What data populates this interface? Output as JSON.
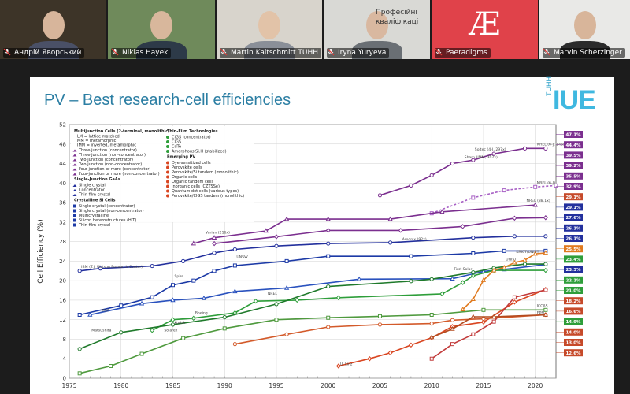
{
  "participants": [
    {
      "name": "Андрій Яворський",
      "bg": "#3d3428",
      "skin": "#d7b59b",
      "shirt": "#4a5066"
    },
    {
      "name": "Niklas Hayek",
      "bg": "#6f8a5b",
      "skin": "#d8b79c",
      "shirt": "#2d3a48"
    },
    {
      "name": "Martin Kaltschmitt TUHH",
      "bg": "#d8d4cc",
      "skin": "#e2c3a8",
      "shirt": "#8a8f98"
    },
    {
      "name": "Iryna Yuryeva",
      "bg": "#d9d9d5",
      "skin": "#d9b8a0",
      "shirt": "#6a6f74",
      "overlay_text": "Професійні\nкваліфікаці"
    },
    {
      "name": "Paeradigms",
      "bg": "#e0424a",
      "logo": "Æ"
    },
    {
      "name": "Marvin Scherzinger",
      "bg": "#e9e9e7",
      "skin": "#d8b59a",
      "shirt": "#2b2b2b"
    }
  ],
  "slide": {
    "title": "PV – Best research-cell efficiencies",
    "logo_small": "TUHH",
    "logo_big": "IUE"
  },
  "chart_data": {
    "type": "line",
    "ylabel": "Cell Efficiency (%)",
    "xlabel": "",
    "xlim": [
      1975,
      2022
    ],
    "ylim": [
      0,
      52
    ],
    "xticks": [
      1975,
      1980,
      1985,
      1990,
      1995,
      2000,
      2005,
      2010,
      2015,
      2020
    ],
    "yticks": [
      0,
      4,
      8,
      12,
      16,
      20,
      24,
      28,
      32,
      36,
      40,
      44,
      48,
      52
    ],
    "grid": true,
    "legend_placement": "top-left",
    "series": [
      {
        "name": "Four-junction or more (concentrator)",
        "color": "#7b2f8f",
        "x": [
          2005,
          2008,
          2010,
          2012,
          2014,
          2016,
          2019,
          2021
        ],
        "y": [
          37.5,
          39.5,
          41.6,
          44.0,
          44.7,
          46.0,
          47.1,
          47.1
        ]
      },
      {
        "name": "Four-junction or more (non-concentrator)",
        "color": "#a75fc4",
        "x": [
          2010,
          2014,
          2017,
          2020,
          2022
        ],
        "y": [
          33.8,
          37.0,
          38.5,
          39.2,
          39.5
        ]
      },
      {
        "name": "Two-junction (concentrator)",
        "color": "#7b2f8f",
        "x": [
          1987,
          1989,
          1994,
          1996,
          2000,
          2006,
          2011,
          2020
        ],
        "y": [
          27.6,
          28.8,
          30.2,
          32.6,
          32.6,
          32.6,
          34.1,
          35.5
        ]
      },
      {
        "name": "Two-junction (non-concentrator)",
        "color": "#7b2f8f",
        "x": [
          1989,
          1995,
          2000,
          2007,
          2013,
          2018,
          2021
        ],
        "y": [
          27.6,
          29.0,
          30.3,
          30.3,
          31.1,
          32.8,
          32.9
        ]
      },
      {
        "name": "Single crystal",
        "color": "#23309d",
        "x": [
          1976,
          1978,
          1983,
          1986,
          1989,
          1991,
          1995,
          2000,
          2006,
          2014,
          2018,
          2021
        ],
        "y": [
          22.0,
          22.5,
          23.0,
          24.0,
          25.7,
          26.4,
          27.1,
          27.6,
          27.8,
          28.8,
          29.1,
          29.1
        ]
      },
      {
        "name": "Crystalline Si (single crystal)",
        "color": "#1c3aa6",
        "x": [
          1976,
          1980,
          1983,
          1985,
          1987,
          1989,
          1991,
          1996,
          2000,
          2008,
          2014,
          2017,
          2021
        ],
        "y": [
          13.0,
          14.9,
          16.6,
          19.1,
          20.0,
          22.0,
          23.1,
          24.0,
          25.0,
          25.0,
          25.6,
          26.1,
          26.1
        ]
      },
      {
        "name": "Multicrystalline Si",
        "color": "#2a52be",
        "x": [
          1977,
          1982,
          1985,
          1988,
          1991,
          1996,
          2003,
          2012,
          2015,
          2017,
          2021
        ],
        "y": [
          13.0,
          15.3,
          16.0,
          16.4,
          17.8,
          18.5,
          20.3,
          20.4,
          21.9,
          22.3,
          23.3
        ]
      },
      {
        "name": "CdTe",
        "color": "#2e9e3a",
        "x": [
          1983,
          1985,
          1987,
          1991,
          1993,
          1997,
          2001,
          2011,
          2013,
          2014,
          2016,
          2021
        ],
        "y": [
          9.8,
          12.0,
          12.3,
          13.4,
          15.8,
          16.0,
          16.5,
          17.3,
          19.6,
          21.0,
          22.1,
          22.1
        ]
      },
      {
        "name": "CIGS",
        "color": "#1f7a2b",
        "x": [
          1976,
          1980,
          1985,
          1990,
          1995,
          2000,
          2008,
          2010,
          2014,
          2016,
          2019,
          2021
        ],
        "y": [
          6.0,
          9.4,
          11.0,
          12.5,
          15.2,
          18.8,
          19.9,
          20.3,
          21.7,
          22.6,
          23.4,
          23.4
        ]
      },
      {
        "name": "Amorphous Si:H (stabilized)",
        "color": "#4f9a3e",
        "x": [
          1976,
          1979,
          1982,
          1986,
          1990,
          1995,
          2000,
          2005,
          2010,
          2015,
          2021
        ],
        "y": [
          1.0,
          2.5,
          5.0,
          8.2,
          10.2,
          12.0,
          12.4,
          12.7,
          13.0,
          14.0,
          14.0
        ]
      },
      {
        "name": "Perovskite cells",
        "color": "#e07a1f",
        "x": [
          2013,
          2014,
          2015,
          2016,
          2017,
          2018,
          2019,
          2020,
          2021
        ],
        "y": [
          14.1,
          16.2,
          20.1,
          22.1,
          22.7,
          23.7,
          24.2,
          25.5,
          25.7
        ]
      },
      {
        "name": "Organic cells",
        "color": "#d94520",
        "x": [
          2001,
          2004,
          2006,
          2008,
          2010,
          2012,
          2015,
          2018,
          2021
        ],
        "y": [
          2.5,
          4.0,
          5.2,
          6.8,
          8.3,
          10.6,
          11.5,
          15.6,
          18.2
        ]
      },
      {
        "name": "Dye-sensitized cells",
        "color": "#d35a2a",
        "x": [
          1991,
          1996,
          2000,
          2005,
          2010,
          2012,
          2015,
          2021
        ],
        "y": [
          7.0,
          9.0,
          10.5,
          11.0,
          11.2,
          11.9,
          12.2,
          13.0
        ]
      },
      {
        "name": "Quantum dot cells",
        "color": "#c23b3b",
        "x": [
          2010,
          2012,
          2014,
          2016,
          2018,
          2021
        ],
        "y": [
          4.0,
          7.0,
          9.0,
          11.6,
          16.6,
          18.1
        ]
      },
      {
        "name": "Inorganic cells (CZTSSe)",
        "color": "#b34b1f",
        "x": [
          2010,
          2012,
          2014,
          2016,
          2021
        ],
        "y": [
          8.4,
          10.1,
          12.6,
          12.6,
          13.0
        ]
      }
    ],
    "legend": {
      "multijunction": {
        "title": "Multijunction Cells (2-terminal, monolithic)",
        "notes": [
          "LM = lattice matched",
          "MM = metamorphic",
          "IMM = inverted, metamorphic"
        ],
        "items": [
          "Three-junction (concentrator)",
          "Three-junction (non-concentrator)",
          "Two-junction (concentrator)",
          "Two-junction (non-concentrator)",
          "Four-junction or more (concentrator)",
          "Four-junction or more (non-concentrator)"
        ]
      },
      "gaas": {
        "title": "Single-Junction GaAs",
        "items": [
          "Single crystal",
          "Concentrator",
          "Thin-film crystal"
        ]
      },
      "si": {
        "title": "Crystalline Si Cells",
        "items": [
          "Single crystal (concentrator)",
          "Single crystal (non-concentrator)",
          "Multicrystalline",
          "Silicon heterostructures (HIT)",
          "Thin-film crystal"
        ]
      },
      "thin": {
        "title": "Thin-Film Technologies",
        "items": [
          "CIGS (concentrator)",
          "CIGS",
          "CdTe",
          "Amorphous Si:H (stabilized)"
        ]
      },
      "emerging": {
        "title": "Emerging PV",
        "items": [
          "Dye-sensitized cells",
          "Perovskite cells",
          "Perovskite/Si tandem (monolithic)",
          "Organic cells",
          "Organic tandem cells",
          "Inorganic cells (CZTSSe)",
          "Quantum dot cells (various types)",
          "Perovskite/CIGS tandem (monolithic)"
        ]
      }
    },
    "annotations": [
      {
        "text": "NREL (6-J, 143x)",
        "x": 2020,
        "y": 47.1
      },
      {
        "text": "Sharp (IMM, 302x)",
        "x": 2013,
        "y": 44.4
      },
      {
        "text": "Soitec (4-J, 297x)",
        "x": 2014,
        "y": 46.0
      },
      {
        "text": "NREL (6-J)",
        "x": 2020,
        "y": 39.2
      },
      {
        "text": "NREL (38.1x)",
        "x": 2019,
        "y": 35.5
      },
      {
        "text": "Amonix (92x)",
        "x": 2007,
        "y": 27.6
      },
      {
        "text": "IBM (T.J. Watson Research Center)",
        "x": 1976,
        "y": 22.0
      },
      {
        "text": "RCA",
        "x": 1978,
        "y": 13.0
      },
      {
        "text": "Matsushita",
        "x": 1977,
        "y": 9.0
      },
      {
        "text": "Varian (216x)",
        "x": 1988,
        "y": 29.0
      },
      {
        "text": "Spire",
        "x": 1985,
        "y": 20.0
      },
      {
        "text": "UNSW",
        "x": 1991,
        "y": 24.0
      },
      {
        "text": "Kodak",
        "x": 1985,
        "y": 10.5
      },
      {
        "text": "Boeing",
        "x": 1987,
        "y": 12.5
      },
      {
        "text": "Solarex",
        "x": 1984,
        "y": 9.0
      },
      {
        "text": "NREL",
        "x": 1994,
        "y": 16.5
      },
      {
        "text": "First Solar",
        "x": 2012,
        "y": 21.5
      },
      {
        "text": "UNIST",
        "x": 2017,
        "y": 23.5
      },
      {
        "text": "KRICT/UNIST",
        "x": 2018,
        "y": 25.0
      },
      {
        "text": "EPFL",
        "x": 2020,
        "y": 12.5
      },
      {
        "text": "ICCAS",
        "x": 2020,
        "y": 14.0
      },
      {
        "text": "U. Linz",
        "x": 2001,
        "y": 2.0
      }
    ],
    "right_badges": [
      {
        "value": "47.1%",
        "color": "#7b2f8f"
      },
      {
        "value": "44.4%",
        "color": "#7b2f8f"
      },
      {
        "value": "39.5%",
        "color": "#7b2f8f"
      },
      {
        "value": "39.2%",
        "color": "#7b2f8f"
      },
      {
        "value": "35.5%",
        "color": "#7b2f8f"
      },
      {
        "value": "32.9%",
        "color": "#7b2f8f"
      },
      {
        "value": "29.1%",
        "color": "#c64a2a"
      },
      {
        "value": "29.1%",
        "color": "#23309d"
      },
      {
        "value": "27.6%",
        "color": "#23309d"
      },
      {
        "value": "26.1%",
        "color": "#23309d"
      },
      {
        "value": "26.1%",
        "color": "#23309d"
      },
      {
        "value": "25.5%",
        "color": "#e07a1f"
      },
      {
        "value": "23.4%",
        "color": "#2e9e3a"
      },
      {
        "value": "23.3%",
        "color": "#23309d"
      },
      {
        "value": "22.1%",
        "color": "#2e9e3a"
      },
      {
        "value": "21.0%",
        "color": "#2e9e3a"
      },
      {
        "value": "18.2%",
        "color": "#c64a2a"
      },
      {
        "value": "16.6%",
        "color": "#c64a2a"
      },
      {
        "value": "14.9%",
        "color": "#2e9e3a"
      },
      {
        "value": "14.0%",
        "color": "#c64a2a"
      },
      {
        "value": "13.0%",
        "color": "#c64a2a"
      },
      {
        "value": "12.6%",
        "color": "#c64a2a"
      }
    ]
  }
}
